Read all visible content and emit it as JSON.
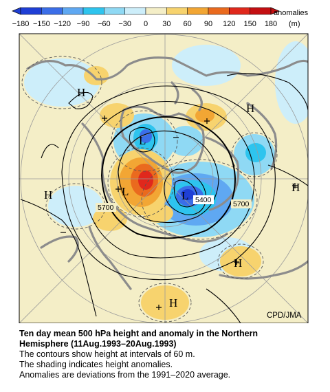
{
  "legend": {
    "title_line1": "anomalies",
    "unit": "(m)",
    "ticks": [
      "−180",
      "−150",
      "−120",
      "−90",
      "−60",
      "−30",
      "0",
      "30",
      "60",
      "90",
      "120",
      "150",
      "180"
    ],
    "colors": [
      "#1f3fd6",
      "#3b6ee8",
      "#5fa8f2",
      "#2ec4ee",
      "#8fd9f4",
      "#cdeefa",
      "#f4eec7",
      "#f7d36e",
      "#f2a634",
      "#ea6a1e",
      "#e0281c",
      "#c40f12"
    ]
  },
  "map": {
    "credit": "CPD/JMA",
    "contour_labels": [
      "5700",
      "5400",
      "5700"
    ],
    "highs": [
      "H",
      "H",
      "H",
      "H",
      "H"
    ],
    "lows": [
      "L",
      "L",
      "L"
    ]
  },
  "caption": {
    "title_line1": "Ten day mean 500 hPa height and anomaly in the Northern",
    "title_line2": "Hemisphere (11Aug.1993–20Aug.1993)",
    "line1": "The contours show height at intervals of 60 m.",
    "line2": "The shading indicates height anomalies.",
    "line3": "Anomalies are deviations from the 1991–2020 average."
  }
}
